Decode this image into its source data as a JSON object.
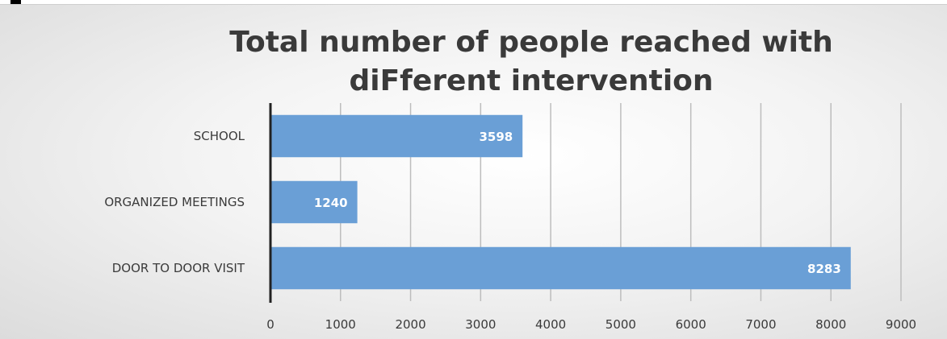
{
  "chart_data": {
    "type": "bar",
    "orientation": "horizontal",
    "title": "Total number of people reached with diFferent intervention",
    "title_lines": [
      "Total number of people reached with",
      "diFferent intervention"
    ],
    "categories": [
      "SCHOOL",
      "ORGANIZED MEETINGS",
      "DOOR TO DOOR VISIT"
    ],
    "values": [
      3598,
      1240,
      8283
    ],
    "xlim": [
      0,
      9000
    ],
    "x_ticks": [
      "0",
      "1000",
      "2000",
      "3000",
      "4000",
      "5000",
      "6000",
      "7000",
      "8000",
      "9000"
    ],
    "grid": true,
    "legend": "none",
    "colors": {
      "bar": "#6a9fd6",
      "bar_label": "#ffffff",
      "grid": "#bdbdbd",
      "axis": "#222222",
      "text": "#3a3a3a"
    }
  }
}
